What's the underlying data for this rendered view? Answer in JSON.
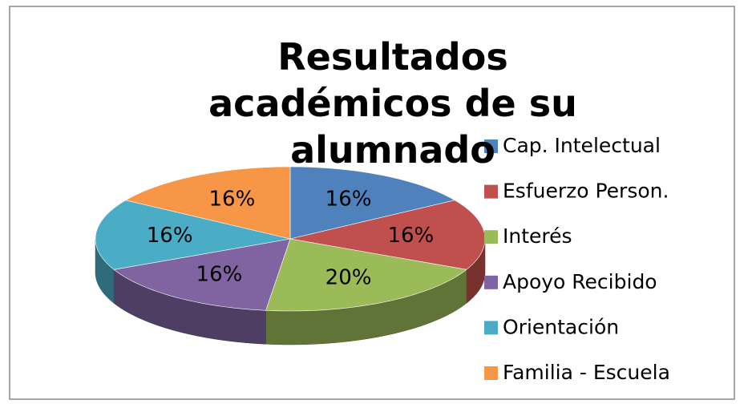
{
  "chart_data": {
    "type": "pie3d",
    "title": "Resultados académicos de su alumnado",
    "categories": [
      "Cap. Intelectual",
      "Esfuerzo Person.",
      "Interés",
      "Apoyo Recibido",
      "Orientación",
      "Familia - Escuela"
    ],
    "values": [
      16,
      16,
      20,
      16,
      16,
      16
    ],
    "value_labels": [
      "16%",
      "16%",
      "20%",
      "16%",
      "16%",
      "16%"
    ],
    "colors": [
      "#4f81bd",
      "#c0504d",
      "#9bbb59",
      "#8064a2",
      "#4bacc6",
      "#f79646"
    ],
    "legend": "right"
  }
}
